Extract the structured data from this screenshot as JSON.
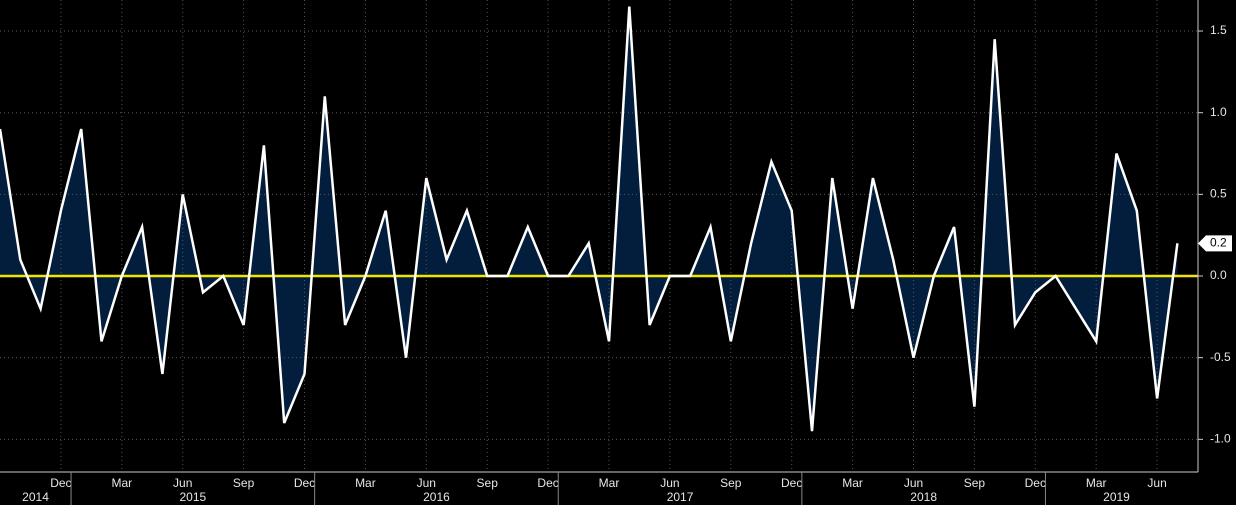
{
  "chart_data": {
    "type": "area-line",
    "categories": [
      null,
      null,
      null,
      "Dec",
      null,
      null,
      "Mar",
      null,
      null,
      "Jun",
      null,
      null,
      "Sep",
      null,
      null,
      "Dec",
      null,
      null,
      "Mar",
      null,
      null,
      "Jun",
      null,
      null,
      "Sep",
      null,
      null,
      "Dec",
      null,
      null,
      "Mar",
      null,
      null,
      "Jun",
      null,
      null,
      "Sep",
      null,
      null,
      "Dec",
      null,
      null,
      "Mar",
      null,
      null,
      "Jun",
      null,
      null,
      "Sep",
      null,
      null,
      "Dec",
      null,
      null,
      "Mar",
      null,
      null,
      "Jun",
      null
    ],
    "years": [
      "2014",
      "2015",
      "2016",
      "2017",
      "2018",
      "2019"
    ],
    "series": [
      {
        "color": "#ffffff",
        "fill": "#031d3d",
        "values": [
          0.9,
          0.1,
          -0.2,
          0.4,
          0.9,
          -0.4,
          0.0,
          0.3,
          -0.6,
          0.5,
          -0.1,
          0.0,
          -0.3,
          0.8,
          -0.9,
          -0.6,
          1.1,
          -0.3,
          0.0,
          0.4,
          -0.5,
          0.6,
          0.1,
          0.4,
          0.0,
          0.0,
          0.3,
          0.0,
          0.0,
          0.2,
          -0.4,
          1.65,
          -0.3,
          0.0,
          0.0,
          0.3,
          -0.4,
          0.2,
          0.7,
          0.4,
          -0.95,
          0.6,
          -0.2,
          0.6,
          0.1,
          -0.5,
          0.0,
          0.3,
          -0.8,
          1.45,
          -0.3,
          -0.1,
          0.0,
          -0.2,
          -0.4,
          0.75,
          0.4,
          -0.75,
          0.2
        ]
      }
    ],
    "ylim": [
      -1.2,
      1.69
    ],
    "yticks": [
      1.5,
      {
        "value": 1.0,
        "label": "1.0"
      },
      0.5,
      {
        "value": 0.0,
        "label": "0.0"
      },
      -0.5,
      {
        "value": -1.0,
        "label": "-1.0"
      }
    ],
    "zero_line_color": "#f2e600",
    "grid": true
  }
}
